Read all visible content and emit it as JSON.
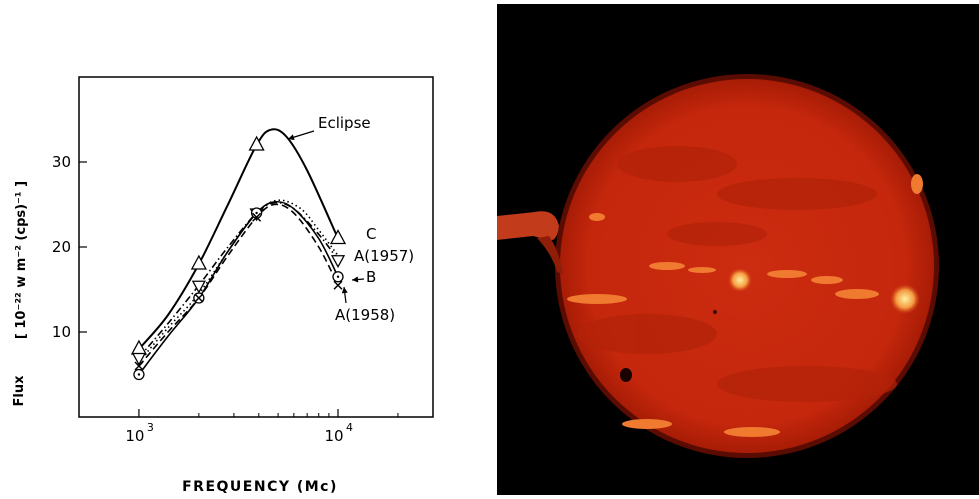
{
  "chart_data": {
    "type": "line",
    "title": "",
    "xlabel": "FREQUENCY (Mc)",
    "ylabel": "Flux",
    "ylabel_units": "[ 10⁻²² w m⁻² (cps)⁻¹ ]",
    "x_scale": "log",
    "xlim": [
      500,
      30000
    ],
    "ylim": [
      0,
      40
    ],
    "x_tick_labels": [
      {
        "value": 1000,
        "base": "10",
        "exp": "3"
      },
      {
        "value": 10000,
        "base": "10",
        "exp": "4"
      }
    ],
    "y_ticks": [
      10,
      20,
      30
    ],
    "grid": false,
    "legend": "none",
    "series": [
      {
        "key": "eclipse",
        "name": "Eclipse",
        "style": "solid",
        "marker": "triangle-up",
        "points": [
          [
            1000,
            8
          ],
          [
            2000,
            18
          ],
          [
            3900,
            32
          ],
          [
            10000,
            21
          ]
        ],
        "curve": [
          [
            1000,
            8
          ],
          [
            1400,
            12
          ],
          [
            2000,
            18
          ],
          [
            2800,
            25
          ],
          [
            3900,
            32
          ],
          [
            4600,
            33.8
          ],
          [
            5500,
            33
          ],
          [
            7000,
            29
          ],
          [
            10000,
            21
          ]
        ]
      },
      {
        "key": "c",
        "name": "C",
        "style": "dotted",
        "marker": "none",
        "points": [
          [
            1000,
            6.5
          ],
          [
            2000,
            14.5
          ],
          [
            3900,
            24
          ],
          [
            10000,
            19
          ]
        ],
        "curve": [
          [
            1000,
            6.5
          ],
          [
            1400,
            10.5
          ],
          [
            2000,
            14.5
          ],
          [
            2800,
            19.5
          ],
          [
            3900,
            24
          ],
          [
            5000,
            25.5
          ],
          [
            6500,
            24.5
          ],
          [
            8000,
            22
          ],
          [
            10000,
            19
          ]
        ]
      },
      {
        "key": "a1957",
        "name": "A(1957)",
        "style": "dash-dot",
        "marker": "triangle-down",
        "points": [
          [
            1000,
            7
          ],
          [
            2000,
            15.5
          ],
          [
            3900,
            24
          ],
          [
            10000,
            18.5
          ]
        ],
        "curve": [
          [
            1000,
            7
          ],
          [
            1400,
            11
          ],
          [
            2000,
            15.5
          ],
          [
            2800,
            20
          ],
          [
            3900,
            24
          ],
          [
            4800,
            25.2
          ],
          [
            6000,
            24.5
          ],
          [
            8000,
            21.5
          ],
          [
            10000,
            18.5
          ]
        ]
      },
      {
        "key": "b",
        "name": "B",
        "style": "solid",
        "marker": "circle-dot",
        "points": [
          [
            1000,
            5
          ],
          [
            2000,
            14
          ],
          [
            3900,
            24
          ],
          [
            10000,
            16.5
          ]
        ],
        "curve": [
          [
            1000,
            5
          ],
          [
            1400,
            9.5
          ],
          [
            2000,
            14
          ],
          [
            2800,
            19.5
          ],
          [
            3900,
            24
          ],
          [
            4800,
            25.3
          ],
          [
            6000,
            24.5
          ],
          [
            8000,
            21
          ],
          [
            10000,
            16.5
          ]
        ]
      },
      {
        "key": "a1958",
        "name": "A(1958)",
        "style": "dashed",
        "marker": "cross",
        "points": [
          [
            1000,
            6
          ],
          [
            2000,
            14
          ],
          [
            3900,
            23.5
          ],
          [
            10000,
            15.5
          ]
        ],
        "curve": [
          [
            1000,
            6
          ],
          [
            1400,
            10
          ],
          [
            2000,
            14
          ],
          [
            2800,
            19
          ],
          [
            3900,
            23.5
          ],
          [
            4800,
            25
          ],
          [
            6000,
            24
          ],
          [
            8000,
            20
          ],
          [
            10000,
            15.5
          ]
        ]
      }
    ],
    "annotations": [
      {
        "key": "eclipse",
        "text": "Eclipse"
      },
      {
        "key": "c",
        "text": "C"
      },
      {
        "key": "a1957",
        "text": "A(1957)"
      },
      {
        "key": "b",
        "text": "B"
      },
      {
        "key": "a1958",
        "text": "A(1958)"
      }
    ]
  },
  "image": {
    "subject": "sun-disk",
    "background_color": "#000000",
    "disk_color": "#c82a0e",
    "highlight_color": "#ffd070"
  }
}
